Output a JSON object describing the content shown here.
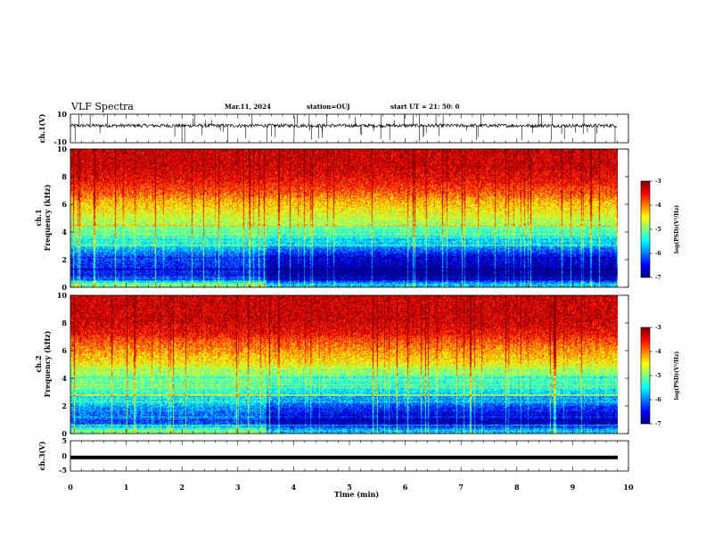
{
  "header": {
    "title": "VLF Spectra",
    "date": "Mar.11, 2024",
    "station": "station=OUJ",
    "start": "start  UT  =  21: 50: 0"
  },
  "chart_data": [
    {
      "type": "line",
      "panel": "ch1-waveform",
      "ylabel": "ch.1(V)",
      "ylim": [
        -10,
        10
      ],
      "y_ticks": [
        "10",
        "-10"
      ],
      "baseline": 2,
      "noise_amplitude": 1.2,
      "color": "#000000"
    },
    {
      "type": "heatmap",
      "panel": "ch1-spectrogram",
      "ylabel": "Frequency (kHz)",
      "channel_label": "ch.1",
      "ylim": [
        0,
        10
      ],
      "y_ticks": [
        "0",
        "2",
        "4",
        "6",
        "8",
        "10"
      ],
      "colorbar": {
        "label": "log(PSD)(V²/Hz)",
        "range": [
          -7,
          -3
        ],
        "ticks": [
          "-3",
          "-4",
          "-5",
          "-6",
          "-7"
        ]
      },
      "frequency_profile_kHz": [
        0.25,
        0.75,
        1.25,
        1.75,
        2.25,
        2.75,
        3.25,
        3.75,
        4.25,
        4.75,
        5.25,
        5.75,
        6.25,
        6.75,
        7.25,
        7.75,
        8.25,
        8.75,
        9.25,
        9.75
      ],
      "log_psd_profile": [
        -5.0,
        -6.5,
        -6.4,
        -6.3,
        -6.2,
        -5.8,
        -5.4,
        -5.2,
        -5.0,
        -4.8,
        -4.6,
        -4.4,
        -4.2,
        -3.9,
        -3.7,
        -3.5,
        -3.4,
        -3.3,
        -3.3,
        -3.3
      ],
      "quiet_after_min": 3.5
    },
    {
      "type": "heatmap",
      "panel": "ch2-spectrogram",
      "ylabel": "Frequency (kHz)",
      "channel_label": "ch.2",
      "ylim": [
        0,
        10
      ],
      "y_ticks": [
        "0",
        "2",
        "4",
        "6",
        "8",
        "10"
      ],
      "colorbar": {
        "label": "log(PSD)(V²/Hz)",
        "range": [
          -7,
          -3
        ],
        "ticks": [
          "-3",
          "-4",
          "-5",
          "-6",
          "-7"
        ]
      },
      "frequency_profile_kHz": [
        0.25,
        0.75,
        1.25,
        1.75,
        2.25,
        2.75,
        3.25,
        3.75,
        4.25,
        4.75,
        5.25,
        5.75,
        6.25,
        6.75,
        7.25,
        7.75,
        8.25,
        8.75,
        9.25,
        9.75
      ],
      "log_psd_profile": [
        -5.0,
        -6.2,
        -6.1,
        -6.0,
        -5.6,
        -5.4,
        -5.2,
        -5.1,
        -4.9,
        -4.7,
        -4.4,
        -4.2,
        -4.0,
        -3.8,
        -3.5,
        -3.4,
        -3.3,
        -3.3,
        -3.3,
        -3.3
      ],
      "quiet_after_min": 3.5
    },
    {
      "type": "line",
      "panel": "ch3-waveform",
      "ylabel": "ch.3(V)",
      "ylim": [
        -5,
        5
      ],
      "y_ticks": [
        "5",
        "0",
        "-5"
      ],
      "baseline": -0.5,
      "color": "#000000"
    }
  ],
  "x_axis": {
    "label": "Time (min)",
    "range": [
      0,
      10
    ],
    "ticks": [
      "0",
      "1",
      "2",
      "3",
      "4",
      "5",
      "6",
      "7",
      "8",
      "9",
      "10"
    ],
    "data_end": 9.8
  }
}
